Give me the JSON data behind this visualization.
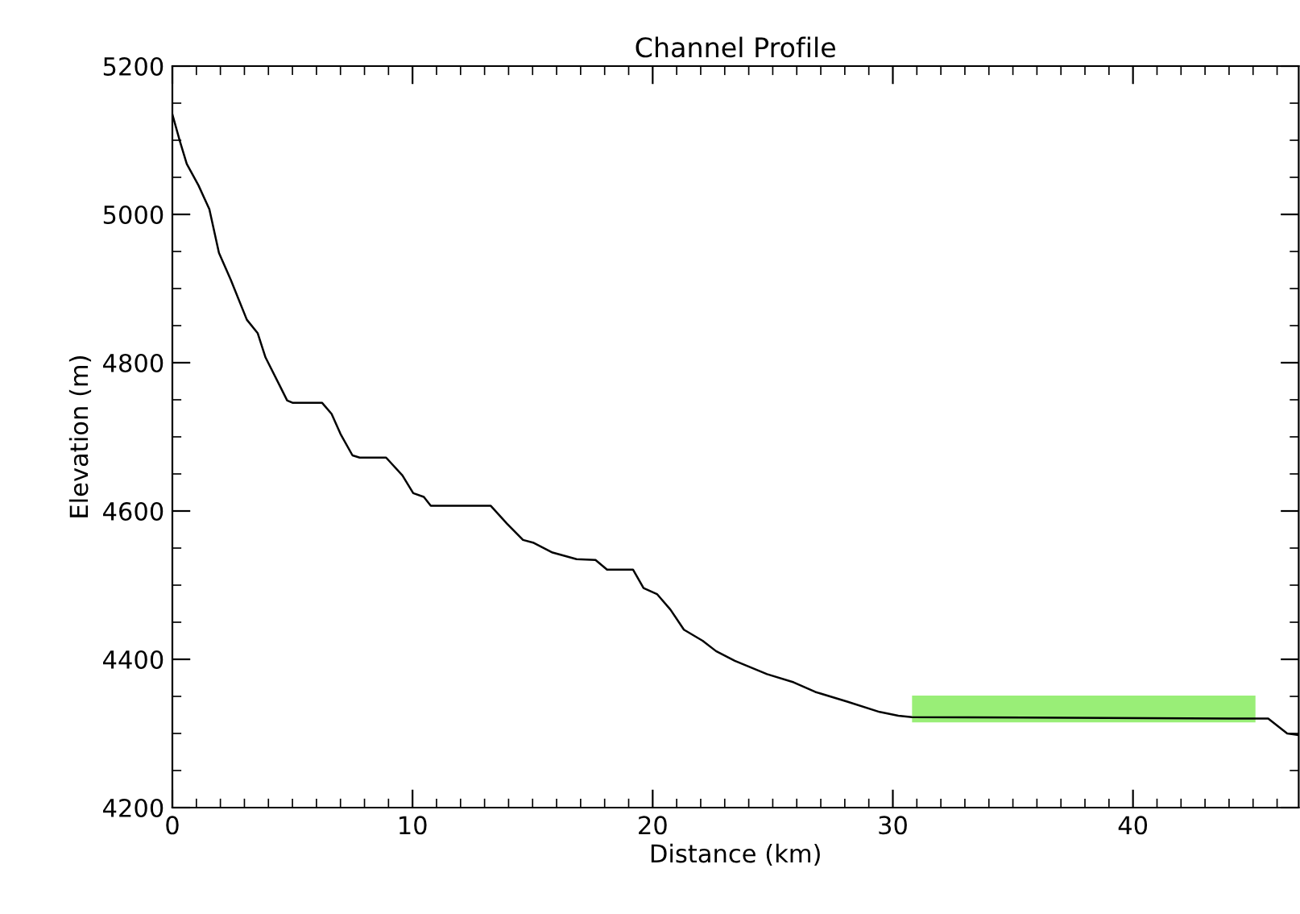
{
  "chart_data": {
    "type": "line",
    "title": "Channel Profile",
    "xlabel": "Distance (km)",
    "ylabel": "Elevation (m)",
    "xlim": [
      0,
      46.9
    ],
    "ylim": [
      4200,
      5200
    ],
    "xticks": [
      0,
      10,
      20,
      30,
      40
    ],
    "yticks": [
      4200,
      4400,
      4600,
      4800,
      5000,
      5200
    ],
    "grid": false,
    "legend": false,
    "series": [
      {
        "color": "#000000",
        "x": [
          0,
          0.31,
          0.6,
          1.09,
          1.54,
          1.94,
          2.43,
          3.1,
          3.55,
          3.88,
          4.44,
          4.78,
          5.0,
          6.23,
          6.63,
          7.0,
          7.5,
          7.8,
          8.9,
          9.58,
          10.03,
          10.47,
          10.76,
          13.26,
          13.93,
          14.6,
          15.05,
          15.83,
          16.83,
          17.62,
          18.1,
          19.18,
          19.62,
          20.18,
          20.74,
          21.3,
          22.08,
          22.64,
          23.42,
          24.76,
          25.87,
          26.77,
          28.1,
          29.45,
          30.23,
          30.79,
          45.63,
          46.42,
          46.86
        ],
        "values": [
          5135,
          5099,
          5068,
          5039,
          5007,
          4948,
          4912,
          4858,
          4840,
          4807,
          4771,
          4749,
          4746,
          4746,
          4731,
          4704,
          4675,
          4672,
          4672,
          4648,
          4624,
          4619,
          4607,
          4607,
          4583,
          4561,
          4557,
          4544,
          4535,
          4534,
          4521,
          4521,
          4496,
          4488,
          4467,
          4440,
          4425,
          4411,
          4398,
          4380,
          4369,
          4356,
          4343,
          4329,
          4324,
          4322,
          4320,
          4300,
          4298
        ]
      },
      {
        "type": "line",
        "color": "#99ee77",
        "x": [
          30.8,
          45.1
        ],
        "values": [
          null,
          null
        ],
        "lower": [
          4315,
          4315
        ],
        "upper": [
          4351,
          4351
        ]
      }
    ]
  }
}
